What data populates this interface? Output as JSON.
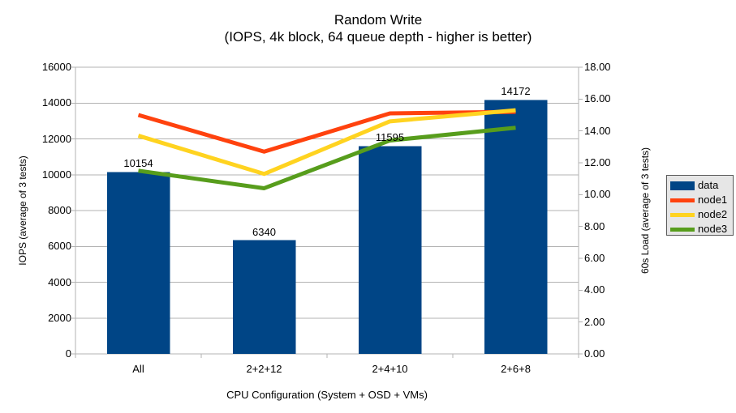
{
  "colors": {
    "background": "#FFFFFF",
    "text": "#000000",
    "grid": "#B3B3B3",
    "axis": "#B3B3B3",
    "bar": "#004586",
    "node1": "#FF420E",
    "node2": "#FFD320",
    "node3": "#579D1C",
    "legend_bg": "#E6E6E6",
    "legend_border": "#595959"
  },
  "chart_data": {
    "type": "bar",
    "title": "Random Write",
    "subtitle": "(IOPS, 4k block, 64 queue depth - higher is better)",
    "xlabel": "CPU Configuration (System + OSD + VMs)",
    "ylabel_left": "IOPS (average of 3 tests)",
    "ylabel_right": "60s Load (average of 3 tests)",
    "categories": [
      "All",
      "2+2+12",
      "2+4+10",
      "2+6+8"
    ],
    "series": [
      {
        "name": "data",
        "type": "bar",
        "axis": "left",
        "color": "#004586",
        "values": [
          10154,
          6340,
          11595,
          14172
        ]
      },
      {
        "name": "node1",
        "type": "line",
        "axis": "right",
        "color": "#FF420E",
        "values": [
          15.0,
          12.7,
          15.1,
          15.2
        ]
      },
      {
        "name": "node2",
        "type": "line",
        "axis": "right",
        "color": "#FFD320",
        "values": [
          13.7,
          11.3,
          14.6,
          15.3
        ]
      },
      {
        "name": "node3",
        "type": "line",
        "axis": "right",
        "color": "#579D1C",
        "values": [
          11.5,
          10.4,
          13.4,
          14.2
        ]
      }
    ],
    "bar_labels": [
      "10154",
      "6340",
      "11595",
      "14172"
    ],
    "y_left": {
      "min": 0,
      "max": 16000,
      "step": 2000
    },
    "y_right": {
      "min": 0,
      "max": 18,
      "step": 2
    },
    "grid": "horizontal",
    "legend_position": "right",
    "legend": [
      "data",
      "node1",
      "node2",
      "node3"
    ]
  }
}
